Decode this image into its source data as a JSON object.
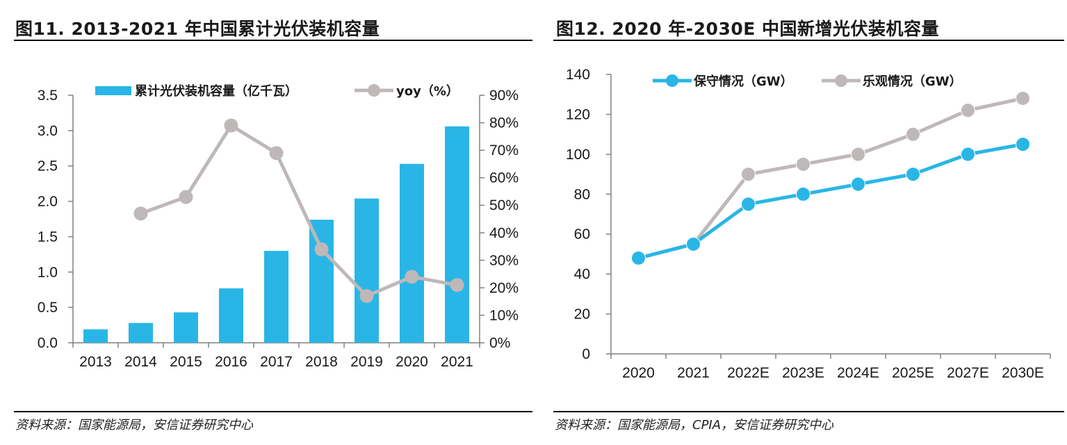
{
  "left": {
    "title": "图11. 2013-2021 年中国累计光伏装机容量",
    "source": "资料来源：国家能源局，安信证券研究中心"
  },
  "right": {
    "title": "图12. 2020 年-2030E 中国新增光伏装机容量",
    "source": "资料来源：国家能源局，CPIA，安信证券研究中心"
  },
  "colors": {
    "blue": "#29b6e6",
    "gray": "#bfb8b8",
    "axis": "#808080"
  },
  "chart_data": [
    {
      "type": "bar",
      "title": "2013-2021 年中国累计光伏装机容量",
      "categories": [
        "2013",
        "2014",
        "2015",
        "2016",
        "2017",
        "2018",
        "2019",
        "2020",
        "2021"
      ],
      "series": [
        {
          "name": "累计光伏装机容量（亿千瓦）",
          "type": "bar",
          "axis": "left",
          "values": [
            0.19,
            0.28,
            0.43,
            0.77,
            1.3,
            1.74,
            2.04,
            2.53,
            3.06
          ]
        },
        {
          "name": "yoy（%）",
          "type": "line",
          "axis": "right",
          "values": [
            null,
            47,
            53,
            79,
            69,
            34,
            17,
            24,
            21
          ]
        }
      ],
      "ylim": [
        0,
        3.5
      ],
      "yticks": [
        "0.0",
        "0.5",
        "1.0",
        "1.5",
        "2.0",
        "2.5",
        "3.0",
        "3.5"
      ],
      "y2lim": [
        0,
        90
      ],
      "y2ticks": [
        "0%",
        "10%",
        "20%",
        "30%",
        "40%",
        "50%",
        "60%",
        "70%",
        "80%",
        "90%"
      ],
      "legend": [
        "累计光伏装机容量（亿千瓦）",
        "yoy（%）"
      ],
      "legend_position": "top"
    },
    {
      "type": "line",
      "title": "2020 年-2030E 中国新增光伏装机容量",
      "categories": [
        "2020",
        "2021",
        "2022E",
        "2023E",
        "2024E",
        "2025E",
        "2027E",
        "2030E"
      ],
      "series": [
        {
          "name": "保守情况（GW）",
          "values": [
            48,
            55,
            75,
            80,
            85,
            90,
            100,
            105
          ]
        },
        {
          "name": "乐观情况（GW）",
          "values": [
            48,
            55,
            90,
            95,
            100,
            110,
            122,
            128
          ]
        }
      ],
      "ylim": [
        0,
        140
      ],
      "yticks": [
        "0",
        "20",
        "40",
        "60",
        "80",
        "100",
        "120",
        "140"
      ],
      "legend": [
        "保守情况（GW）",
        "乐观情况（GW）"
      ],
      "legend_position": "top"
    }
  ]
}
